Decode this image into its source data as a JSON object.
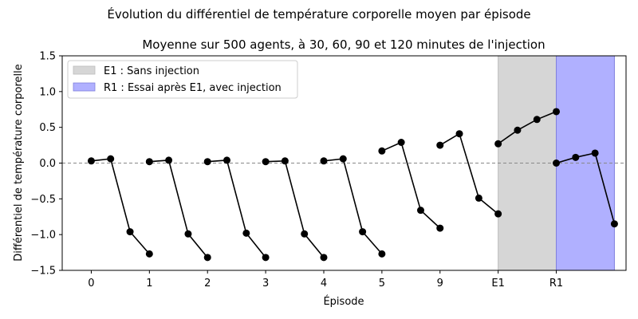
{
  "chart_data": {
    "type": "line",
    "title": "Évolution du différentiel de température corporelle moyen par épisode",
    "subtitle": "Moyenne sur 500 agents, à 30, 60, 90 et 120 minutes de l'injection",
    "xlabel": "Épisode",
    "ylabel": "Différentiel de température corporelle",
    "ylim": [
      -1.5,
      1.5
    ],
    "yticks": [
      -1.5,
      -1.0,
      -0.5,
      0.0,
      0.5,
      1.0,
      1.5
    ],
    "ytick_labels": [
      "−1.5",
      "−1.0",
      "−0.5",
      "0.0",
      "0.5",
      "1.0",
      "1.5"
    ],
    "xlim": [
      -0.5,
      9.2
    ],
    "xticks": [
      0,
      1,
      2,
      3,
      4,
      5,
      6,
      7,
      8
    ],
    "xtick_labels": [
      "0",
      "1",
      "2",
      "3",
      "4",
      "5",
      "9",
      "E1",
      "R1"
    ],
    "reference_line": {
      "y": 0.0,
      "style": "dashed",
      "color": "#888888"
    },
    "grid": false,
    "legend_placement": "upper-left",
    "regions": [
      {
        "label": "E1 : Sans injection",
        "x_start": 7,
        "x_end": 8,
        "color": "#d6d6d6"
      },
      {
        "label": "R1 : Essai après E1, avec injection",
        "x_start": 8,
        "x_end": 9,
        "color": "#b0b0ff"
      }
    ],
    "line_color": "#000000",
    "groups": [
      {
        "episode": "0",
        "x": [
          0.0,
          0.333,
          0.667,
          1.0
        ],
        "y": [
          0.03,
          0.06,
          -0.96,
          -1.27
        ]
      },
      {
        "episode": "1",
        "x": [
          1.0,
          1.333,
          1.667,
          2.0
        ],
        "y": [
          0.02,
          0.04,
          -0.99,
          -1.32
        ]
      },
      {
        "episode": "2",
        "x": [
          2.0,
          2.333,
          2.667,
          3.0
        ],
        "y": [
          0.02,
          0.04,
          -0.98,
          -1.32
        ]
      },
      {
        "episode": "3",
        "x": [
          3.0,
          3.333,
          3.667,
          4.0
        ],
        "y": [
          0.02,
          0.03,
          -0.99,
          -1.32
        ]
      },
      {
        "episode": "4",
        "x": [
          4.0,
          4.333,
          4.667,
          5.0
        ],
        "y": [
          0.03,
          0.06,
          -0.96,
          -1.27
        ]
      },
      {
        "episode": "5",
        "x": [
          5.0,
          5.333,
          5.667,
          6.0
        ],
        "y": [
          0.17,
          0.29,
          -0.66,
          -0.91
        ]
      },
      {
        "episode": "9",
        "x": [
          6.0,
          6.333,
          6.667,
          7.0
        ],
        "y": [
          0.25,
          0.41,
          -0.49,
          -0.71
        ]
      },
      {
        "episode": "E1",
        "x": [
          7.0,
          7.333,
          7.667,
          8.0
        ],
        "y": [
          0.27,
          0.46,
          0.61,
          0.72
        ]
      },
      {
        "episode": "R1",
        "x": [
          8.0,
          8.333,
          8.667,
          9.0
        ],
        "y": [
          0.0,
          0.08,
          0.14,
          -0.85
        ]
      }
    ]
  }
}
